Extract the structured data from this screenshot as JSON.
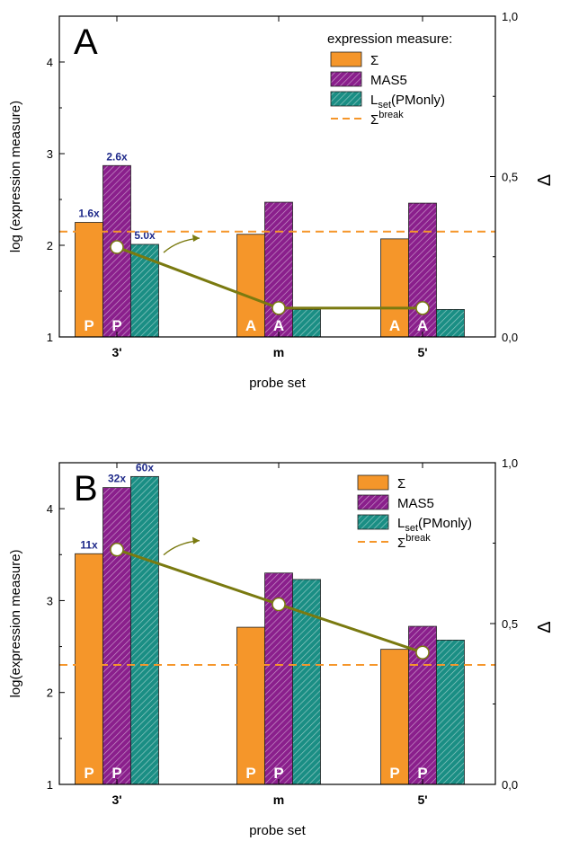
{
  "colors": {
    "sigma": "#f5962a",
    "mas5": "#8a1f8c",
    "lset": "#1a8e84",
    "break_line": "#f5962a",
    "delta_line": "#7a7a10",
    "bar_label": "#ffffff",
    "fold": "#1f2a8a"
  },
  "chart_data": [
    {
      "type": "bar",
      "panel_label": "A",
      "title": "",
      "xlabel": "probe set",
      "ylabel": "log (expression measure)",
      "y2label": "Δ",
      "ylim": [
        1,
        4.5
      ],
      "y2lim": [
        0,
        1
      ],
      "yticks": [
        "1",
        "2",
        "3",
        "4"
      ],
      "y2ticks": [
        "0,0",
        "0,5",
        "1,0"
      ],
      "categories": [
        "3'",
        "m",
        "5'"
      ],
      "legend_title": "expression measure:",
      "legend_placement": "top-right",
      "series": [
        {
          "key": "sigma",
          "name": "Σ",
          "values": [
            2.25,
            2.12,
            2.07
          ],
          "calls": [
            "P",
            "A",
            "A"
          ]
        },
        {
          "key": "mas5",
          "name": "MAS5",
          "values": [
            2.87,
            2.47,
            2.46
          ],
          "calls": [
            "P",
            "A",
            "A"
          ]
        },
        {
          "key": "lset",
          "name": "L",
          "name_sub": "set",
          "name_suffix": "(PMonly)",
          "values": [
            2.01,
            1.3,
            1.3
          ],
          "calls": [
            "",
            "",
            ""
          ]
        }
      ],
      "break_line": {
        "name": "Σ",
        "name_sup": "break",
        "value": 2.15
      },
      "fold_labels": [
        {
          "series": "sigma",
          "category": 0,
          "text": "1.6x"
        },
        {
          "series": "mas5",
          "category": 0,
          "text": "2.6x"
        },
        {
          "series": "lset",
          "category": 0,
          "text": "5.0x"
        }
      ],
      "delta": {
        "x_series": [
          "mas5",
          "mas5",
          "mas5"
        ],
        "values": [
          0.28,
          0.09,
          0.09
        ]
      }
    },
    {
      "type": "bar",
      "panel_label": "B",
      "title": "",
      "xlabel": "probe set",
      "ylabel": "log(expression measure)",
      "y2label": "Δ",
      "ylim": [
        1,
        4.5
      ],
      "y2lim": [
        0,
        1
      ],
      "yticks": [
        "1",
        "2",
        "3",
        "4"
      ],
      "y2ticks": [
        "0,0",
        "0,5",
        "1,0"
      ],
      "categories": [
        "3'",
        "m",
        "5'"
      ],
      "legend_title": "",
      "legend_placement": "top-right",
      "series": [
        {
          "key": "sigma",
          "name": "Σ",
          "values": [
            3.51,
            2.71,
            2.47
          ],
          "calls": [
            "P",
            "P",
            "P"
          ]
        },
        {
          "key": "mas5",
          "name": "MAS5",
          "values": [
            4.23,
            3.3,
            2.72
          ],
          "calls": [
            "P",
            "P",
            "P"
          ]
        },
        {
          "key": "lset",
          "name": "L",
          "name_sub": "set",
          "name_suffix": "(PMonly)",
          "values": [
            4.35,
            3.23,
            2.57
          ],
          "calls": [
            "",
            "",
            ""
          ]
        }
      ],
      "break_line": {
        "name": "Σ",
        "name_sup": "break",
        "value": 2.3
      },
      "fold_labels": [
        {
          "series": "sigma",
          "category": 0,
          "text": "11x"
        },
        {
          "series": "mas5",
          "category": 0,
          "text": "32x"
        },
        {
          "series": "lset",
          "category": 0,
          "text": "60x"
        }
      ],
      "delta": {
        "x_series": [
          "mas5",
          "mas5",
          "mas5"
        ],
        "values": [
          0.73,
          0.56,
          0.41
        ]
      }
    }
  ]
}
